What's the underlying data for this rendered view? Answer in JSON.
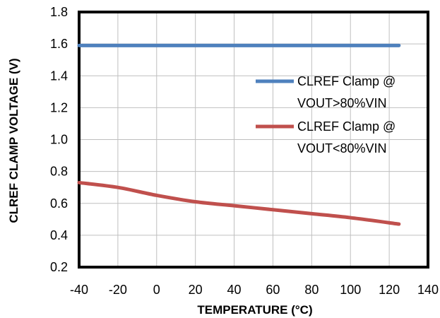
{
  "chart_data": {
    "type": "line",
    "title": "",
    "xlabel": "TEMPERATURE (°C)",
    "ylabel": "CLREF CLAMP  VOLTAGE (V)",
    "xlim": [
      -40,
      140
    ],
    "ylim": [
      0.2,
      1.8
    ],
    "xticks": [
      -40,
      -20,
      0,
      20,
      40,
      60,
      80,
      100,
      120,
      140
    ],
    "yticks": [
      0.2,
      0.4,
      0.6,
      0.8,
      1.0,
      1.2,
      1.4,
      1.6,
      1.8
    ],
    "xtick_labels": [
      "-40",
      "-20",
      "0",
      "20",
      "40",
      "60",
      "80",
      "100",
      "120",
      "140"
    ],
    "ytick_labels": [
      "0.2",
      "0.4",
      "0.6",
      "0.8",
      "1.0",
      "1.2",
      "1.4",
      "1.6",
      "1.8"
    ],
    "grid": true,
    "legend_position": "right",
    "series": [
      {
        "name_lines": [
          "CLREF Clamp @",
          "VOUT>80%VIN"
        ],
        "color": "#4F81BD",
        "x": [
          -40,
          -20,
          0,
          20,
          40,
          60,
          80,
          100,
          125
        ],
        "y": [
          1.59,
          1.59,
          1.59,
          1.59,
          1.59,
          1.59,
          1.59,
          1.59,
          1.59
        ]
      },
      {
        "name_lines": [
          "CLREF Clamp @",
          "VOUT<80%VIN"
        ],
        "color": "#C0504D",
        "x": [
          -40,
          -20,
          0,
          20,
          40,
          60,
          80,
          100,
          125
        ],
        "y": [
          0.73,
          0.7,
          0.65,
          0.61,
          0.585,
          0.56,
          0.535,
          0.51,
          0.47
        ]
      }
    ]
  }
}
